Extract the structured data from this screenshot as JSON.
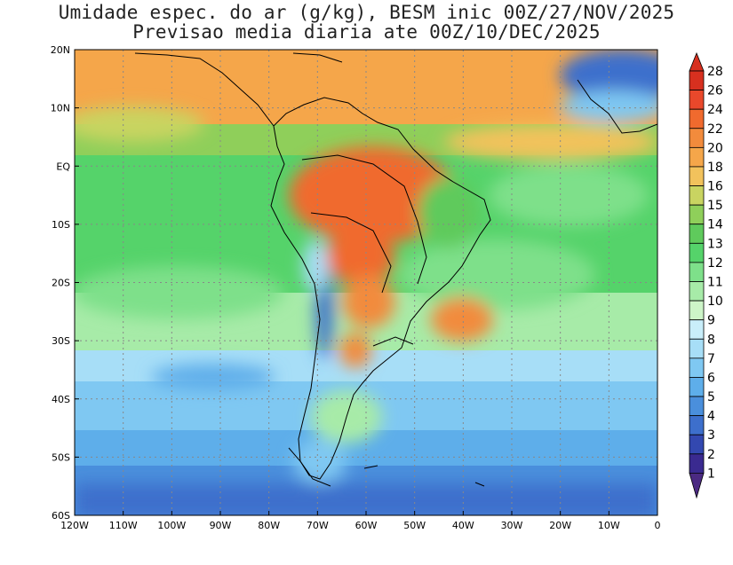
{
  "title_line1": "Umidade espec. do ar (g/kg), BESM inic 00Z/27/NOV/2025",
  "title_line2": "Previsao media diaria ate 00Z/10/DEC/2025",
  "map": {
    "lon_range": [
      -120,
      0
    ],
    "lat_range": [
      -60,
      20
    ],
    "lon_ticks": [
      {
        "value": -120,
        "label": "120W"
      },
      {
        "value": -110,
        "label": "110W"
      },
      {
        "value": -100,
        "label": "100W"
      },
      {
        "value": -90,
        "label": "90W"
      },
      {
        "value": -80,
        "label": "80W"
      },
      {
        "value": -70,
        "label": "70W"
      },
      {
        "value": -60,
        "label": "60W"
      },
      {
        "value": -50,
        "label": "50W"
      },
      {
        "value": -40,
        "label": "40W"
      },
      {
        "value": -30,
        "label": "30W"
      },
      {
        "value": -20,
        "label": "20W"
      },
      {
        "value": -10,
        "label": "10W"
      },
      {
        "value": 0,
        "label": "0"
      }
    ],
    "lat_ticks": [
      {
        "value": 20,
        "label": "20N"
      },
      {
        "value": 10,
        "label": "10N"
      },
      {
        "value": 0,
        "label": "EQ"
      },
      {
        "value": -10,
        "label": "10S"
      },
      {
        "value": -20,
        "label": "20S"
      },
      {
        "value": -30,
        "label": "30S"
      },
      {
        "value": -40,
        "label": "40S"
      },
      {
        "value": -50,
        "label": "50S"
      },
      {
        "value": -60,
        "label": "60S"
      }
    ],
    "grid": true
  },
  "colorbar": {
    "levels": [
      {
        "label": "28",
        "color": "#d7301f"
      },
      {
        "label": "26",
        "color": "#e9482b"
      },
      {
        "label": "24",
        "color": "#f06a2e"
      },
      {
        "label": "22",
        "color": "#f28b3c"
      },
      {
        "label": "20",
        "color": "#f5a64a"
      },
      {
        "label": "18",
        "color": "#f2c25c"
      },
      {
        "label": "16",
        "color": "#c9d461"
      },
      {
        "label": "15",
        "color": "#8fcf5a"
      },
      {
        "label": "14",
        "color": "#5fca5c"
      },
      {
        "label": "13",
        "color": "#55d36a"
      },
      {
        "label": "12",
        "color": "#7ee08a"
      },
      {
        "label": "11",
        "color": "#a7eba8"
      },
      {
        "label": "10",
        "color": "#cdf5c8"
      },
      {
        "label": "9",
        "color": "#c9eefa"
      },
      {
        "label": "8",
        "color": "#a7def7"
      },
      {
        "label": "7",
        "color": "#7fc8f2"
      },
      {
        "label": "6",
        "color": "#5eaeea"
      },
      {
        "label": "5",
        "color": "#4a8fdc"
      },
      {
        "label": "4",
        "color": "#3d6fcc"
      },
      {
        "label": "3",
        "color": "#3348b0"
      },
      {
        "label": "2",
        "color": "#3a2a90"
      },
      {
        "label": "1",
        "color": "#4b2a82"
      }
    ]
  }
}
